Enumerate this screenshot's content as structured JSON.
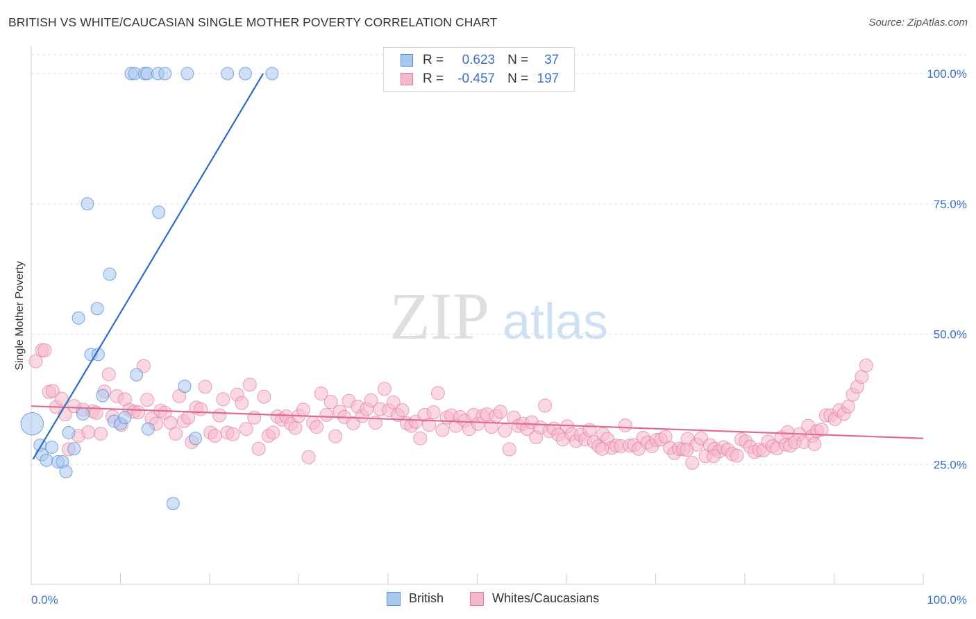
{
  "header": {
    "title": "BRITISH VS WHITE/CAUCASIAN SINGLE MOTHER POVERTY CORRELATION CHART",
    "source": "Source: ZipAtlas.com"
  },
  "watermark": {
    "zip": "ZIP",
    "atlas": "atlas"
  },
  "legend": {
    "rows": [
      {
        "r_label": "R =",
        "r_value": "0.623",
        "n_label": "N =",
        "n_value": "37",
        "color": "#a9c8f0",
        "border": "#5b8fd6"
      },
      {
        "r_label": "R =",
        "r_value": "-0.457",
        "n_label": "N =",
        "n_value": "197",
        "color": "#f6b8cb",
        "border": "#e27a9c"
      }
    ],
    "bottom": [
      {
        "label": "British",
        "color": "#a9c8f0",
        "border": "#5b8fd6"
      },
      {
        "label": "Whites/Caucasians",
        "color": "#f6b8cb",
        "border": "#e27a9c"
      }
    ]
  },
  "chart_data": {
    "type": "scatter",
    "title": "BRITISH VS WHITE/CAUCASIAN SINGLE MOTHER POVERTY CORRELATION CHART",
    "xlabel": "",
    "ylabel": "Single Mother Poverty",
    "xlim": [
      0,
      100
    ],
    "ylim": [
      2,
      104
    ],
    "x_tick_labels": [
      "0.0%",
      "100.0%"
    ],
    "y_ticks": [
      25,
      50,
      75,
      100
    ],
    "y_tick_labels": [
      "25.0%",
      "50.0%",
      "75.0%",
      "100.0%"
    ],
    "grid": true,
    "colors": {
      "british": "#5b8fd6",
      "british_fill": "#a9c8f0",
      "white": "#e27a9c",
      "white_fill": "#f6b8cb",
      "british_line": "#2b6cc4",
      "white_line": "#e06a92",
      "axis_label": "#3a6fc4"
    },
    "series": [
      {
        "name": "British",
        "points": [
          [
            0.1,
            32.8
          ],
          [
            1.0,
            28.7
          ],
          [
            1.2,
            26.9
          ],
          [
            1.7,
            25.8
          ],
          [
            2.3,
            28.3
          ],
          [
            3.0,
            25.5
          ],
          [
            3.5,
            25.5
          ],
          [
            3.9,
            23.6
          ],
          [
            4.2,
            31.1
          ],
          [
            4.8,
            28.0
          ],
          [
            5.8,
            34.7
          ],
          [
            6.3,
            75.0
          ],
          [
            6.7,
            46.1
          ],
          [
            7.5,
            46.1
          ],
          [
            7.4,
            54.9
          ],
          [
            5.3,
            53.1
          ],
          [
            8.0,
            38.2
          ],
          [
            8.8,
            61.5
          ],
          [
            9.3,
            33.3
          ],
          [
            10.0,
            32.8
          ],
          [
            10.5,
            34.0
          ],
          [
            11.2,
            100
          ],
          [
            11.6,
            100
          ],
          [
            12.7,
            100
          ],
          [
            13.0,
            100
          ],
          [
            14.2,
            100
          ],
          [
            15.0,
            100
          ],
          [
            17.5,
            100
          ],
          [
            22.0,
            100
          ],
          [
            24.0,
            100
          ],
          [
            27.0,
            100
          ],
          [
            11.8,
            42.2
          ],
          [
            14.3,
            73.4
          ],
          [
            13.1,
            31.8
          ],
          [
            17.2,
            40.0
          ],
          [
            18.4,
            30.0
          ],
          [
            15.9,
            17.5
          ]
        ],
        "sizes": [
          18,
          10,
          10,
          10,
          10,
          10,
          10,
          10,
          10,
          10,
          10,
          10,
          10,
          10,
          10,
          10,
          10,
          10,
          10,
          10,
          10,
          10,
          10,
          10,
          10,
          10,
          10,
          10,
          10,
          10,
          10,
          10,
          10,
          10,
          10,
          10,
          10
        ],
        "trend": {
          "x": [
            0.2,
            26.0
          ],
          "y": [
            26.0,
            100.0
          ]
        }
      },
      {
        "name": "Whites/Caucasians",
        "points": [
          [
            0.5,
            44.8
          ],
          [
            1.2,
            46.9
          ],
          [
            1.5,
            46.9
          ],
          [
            2.0,
            38.9
          ],
          [
            2.4,
            39.1
          ],
          [
            2.8,
            36.0
          ],
          [
            3.4,
            37.6
          ],
          [
            3.8,
            34.6
          ],
          [
            4.2,
            27.9
          ],
          [
            4.8,
            36.2
          ],
          [
            5.3,
            30.5
          ],
          [
            5.8,
            35.5
          ],
          [
            6.4,
            31.2
          ],
          [
            6.9,
            35.2
          ],
          [
            7.3,
            34.9
          ],
          [
            7.8,
            30.9
          ],
          [
            8.2,
            39.0
          ],
          [
            8.7,
            42.3
          ],
          [
            9.1,
            34.2
          ],
          [
            9.6,
            38.1
          ],
          [
            10.1,
            32.6
          ],
          [
            10.5,
            37.5
          ],
          [
            11.0,
            35.5
          ],
          [
            11.5,
            35.1
          ],
          [
            12.0,
            35.0
          ],
          [
            12.6,
            43.9
          ],
          [
            13.0,
            37.4
          ],
          [
            13.5,
            33.8
          ],
          [
            14.0,
            32.8
          ],
          [
            14.5,
            35.3
          ],
          [
            15.0,
            34.9
          ],
          [
            15.6,
            33.0
          ],
          [
            16.2,
            30.9
          ],
          [
            16.6,
            38.1
          ],
          [
            17.1,
            33.3
          ],
          [
            17.6,
            34.0
          ],
          [
            18.0,
            29.3
          ],
          [
            18.5,
            35.9
          ],
          [
            19.0,
            35.6
          ],
          [
            19.5,
            39.9
          ],
          [
            20.1,
            31.1
          ],
          [
            20.6,
            30.5
          ],
          [
            21.1,
            34.4
          ],
          [
            21.5,
            37.5
          ],
          [
            22.0,
            31.1
          ],
          [
            22.6,
            30.8
          ],
          [
            23.1,
            38.4
          ],
          [
            23.6,
            36.8
          ],
          [
            24.1,
            31.8
          ],
          [
            24.5,
            40.3
          ],
          [
            25.0,
            34.0
          ],
          [
            25.5,
            28.0
          ],
          [
            26.1,
            38.0
          ],
          [
            26.6,
            30.5
          ],
          [
            27.1,
            31.1
          ],
          [
            27.6,
            34.2
          ],
          [
            28.1,
            33.6
          ],
          [
            28.6,
            34.2
          ],
          [
            29.1,
            32.8
          ],
          [
            29.6,
            32.0
          ],
          [
            30.0,
            34.3
          ],
          [
            30.5,
            35.5
          ],
          [
            31.1,
            26.4
          ],
          [
            31.6,
            33.0
          ],
          [
            32.0,
            32.2
          ],
          [
            32.5,
            38.6
          ],
          [
            33.1,
            34.5
          ],
          [
            33.6,
            37.0
          ],
          [
            34.1,
            30.4
          ],
          [
            34.6,
            35.1
          ],
          [
            35.1,
            34.1
          ],
          [
            35.6,
            37.2
          ],
          [
            36.1,
            32.9
          ],
          [
            36.6,
            36.1
          ],
          [
            37.1,
            34.3
          ],
          [
            37.6,
            35.6
          ],
          [
            38.1,
            37.3
          ],
          [
            38.6,
            33.0
          ],
          [
            39.1,
            35.6
          ],
          [
            39.6,
            39.5
          ],
          [
            40.1,
            35.4
          ],
          [
            40.6,
            36.9
          ],
          [
            41.1,
            34.5
          ],
          [
            41.6,
            35.4
          ],
          [
            42.1,
            32.9
          ],
          [
            42.6,
            32.4
          ],
          [
            43.1,
            33.2
          ],
          [
            43.6,
            30.0
          ],
          [
            44.1,
            34.5
          ],
          [
            44.6,
            32.6
          ],
          [
            45.1,
            35.0
          ],
          [
            45.6,
            38.7
          ],
          [
            46.1,
            31.6
          ],
          [
            46.6,
            34.0
          ],
          [
            47.1,
            34.4
          ],
          [
            47.6,
            32.4
          ],
          [
            48.1,
            34.1
          ],
          [
            48.6,
            33.4
          ],
          [
            49.1,
            31.8
          ],
          [
            49.6,
            34.5
          ],
          [
            50.1,
            32.8
          ],
          [
            50.6,
            34.3
          ],
          [
            51.1,
            34.6
          ],
          [
            51.6,
            32.2
          ],
          [
            52.1,
            34.3
          ],
          [
            52.6,
            35.1
          ],
          [
            53.1,
            31.5
          ],
          [
            53.6,
            27.9
          ],
          [
            54.1,
            34.0
          ],
          [
            54.6,
            32.4
          ],
          [
            55.1,
            32.8
          ],
          [
            55.6,
            31.8
          ],
          [
            56.1,
            33.1
          ],
          [
            56.6,
            30.2
          ],
          [
            57.1,
            32.1
          ],
          [
            57.6,
            36.3
          ],
          [
            58.1,
            31.4
          ],
          [
            58.6,
            31.9
          ],
          [
            59.1,
            30.7
          ],
          [
            59.6,
            29.8
          ],
          [
            60.1,
            32.3
          ],
          [
            60.6,
            30.8
          ],
          [
            61.1,
            29.5
          ],
          [
            61.6,
            30.7
          ],
          [
            62.1,
            29.8
          ],
          [
            62.6,
            31.6
          ],
          [
            63.1,
            29.3
          ],
          [
            63.6,
            28.5
          ],
          [
            64.1,
            30.8
          ],
          [
            64.6,
            29.9
          ],
          [
            65.1,
            28.2
          ],
          [
            65.6,
            28.6
          ],
          [
            66.1,
            28.5
          ],
          [
            66.6,
            32.5
          ],
          [
            67.1,
            28.6
          ],
          [
            67.6,
            28.7
          ],
          [
            68.1,
            28.0
          ],
          [
            68.6,
            30.1
          ],
          [
            69.1,
            29.2
          ],
          [
            69.6,
            28.5
          ],
          [
            70.1,
            29.7
          ],
          [
            70.6,
            29.8
          ],
          [
            71.1,
            30.3
          ],
          [
            71.6,
            28.2
          ],
          [
            72.1,
            27.2
          ],
          [
            72.6,
            28.0
          ],
          [
            73.1,
            27.9
          ],
          [
            73.6,
            29.9
          ],
          [
            74.1,
            25.3
          ],
          [
            74.6,
            28.8
          ],
          [
            75.1,
            30.0
          ],
          [
            75.6,
            26.6
          ],
          [
            76.1,
            28.7
          ],
          [
            76.6,
            28.0
          ],
          [
            77.1,
            27.5
          ],
          [
            77.6,
            28.3
          ],
          [
            78.1,
            27.8
          ],
          [
            78.6,
            27.0
          ],
          [
            79.1,
            26.7
          ],
          [
            79.6,
            29.8
          ],
          [
            80.1,
            29.4
          ],
          [
            80.6,
            28.4
          ],
          [
            81.1,
            27.4
          ],
          [
            81.6,
            27.8
          ],
          [
            82.1,
            27.7
          ],
          [
            82.6,
            29.4
          ],
          [
            83.1,
            28.5
          ],
          [
            83.6,
            28.1
          ],
          [
            84.1,
            30.2
          ],
          [
            84.6,
            28.8
          ],
          [
            85.1,
            28.6
          ],
          [
            85.6,
            29.3
          ],
          [
            86.1,
            30.8
          ],
          [
            86.6,
            29.3
          ],
          [
            87.1,
            32.4
          ],
          [
            87.6,
            30.5
          ],
          [
            88.1,
            31.4
          ],
          [
            88.6,
            31.7
          ],
          [
            89.1,
            34.4
          ],
          [
            89.6,
            34.4
          ],
          [
            90.1,
            33.7
          ],
          [
            90.6,
            35.4
          ],
          [
            91.1,
            34.7
          ],
          [
            91.6,
            36.1
          ],
          [
            92.1,
            38.4
          ],
          [
            92.6,
            39.9
          ],
          [
            93.1,
            41.8
          ],
          [
            93.6,
            44.0
          ],
          [
            73.5,
            27.8
          ],
          [
            76.5,
            26.6
          ],
          [
            84.8,
            31.2
          ],
          [
            87.8,
            28.9
          ],
          [
            64.0,
            28.0
          ]
        ],
        "trend": {
          "x": [
            0.0,
            100.0
          ],
          "y": [
            36.2,
            30.0
          ]
        }
      }
    ]
  }
}
